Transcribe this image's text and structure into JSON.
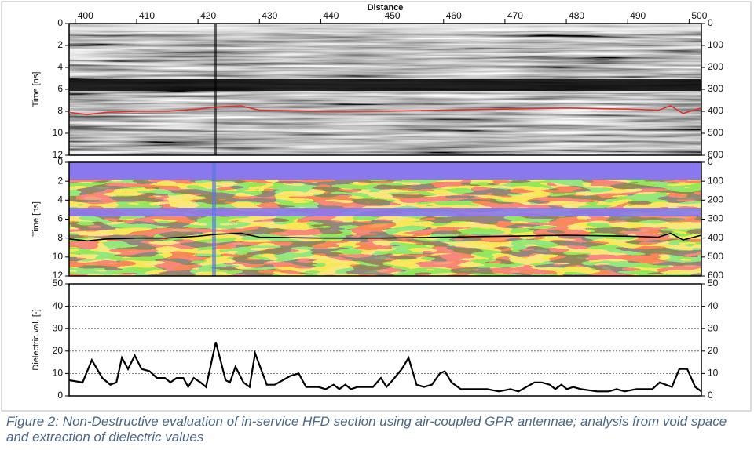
{
  "chart_data": [
    {
      "type": "radargram",
      "xlabel": "Distance",
      "ylabel": "Time [ns]",
      "xlim": [
        399,
        502
      ],
      "xticks": [
        400,
        410,
        420,
        430,
        440,
        450,
        460,
        470,
        480,
        490,
        500
      ],
      "ylim": [
        0,
        12
      ],
      "y_inverted": true,
      "yticks": [
        0,
        2,
        4,
        6,
        8,
        10,
        12
      ],
      "y2lim": [
        0,
        600
      ],
      "y2ticks": [
        0,
        100,
        200,
        300,
        400,
        500,
        600
      ],
      "color": "#e0302a",
      "x": [
        399,
        402,
        405,
        410,
        415,
        420,
        423,
        427,
        430,
        440,
        450,
        460,
        470,
        480,
        490,
        495,
        497,
        499,
        502
      ],
      "values": [
        8.1,
        8.3,
        8.1,
        8.0,
        8.0,
        7.8,
        7.6,
        7.5,
        7.9,
        8.0,
        8.0,
        7.9,
        7.8,
        7.7,
        7.8,
        7.9,
        7.5,
        8.2,
        7.7
      ]
    },
    {
      "type": "colormap",
      "ylabel": "Time [ns]",
      "xlim": [
        399,
        502
      ],
      "ylim": [
        0,
        12
      ],
      "y_inverted": true,
      "yticks": [
        0,
        2,
        4,
        6,
        8,
        10,
        12
      ],
      "y2lim": [
        0,
        600
      ],
      "y2ticks": [
        0,
        100,
        200,
        300,
        400,
        500,
        600
      ],
      "color": "#000000",
      "x": [
        399,
        402,
        405,
        410,
        415,
        420,
        423,
        427,
        430,
        440,
        450,
        460,
        470,
        480,
        490,
        495,
        497,
        499,
        502
      ],
      "values": [
        8.1,
        8.3,
        8.1,
        8.0,
        8.0,
        7.8,
        7.6,
        7.5,
        7.9,
        8.0,
        8.0,
        7.9,
        7.8,
        7.7,
        7.8,
        7.9,
        7.5,
        8.2,
        7.7
      ]
    },
    {
      "type": "line",
      "ylabel": "Dielectric val. [-]",
      "xlim": [
        399,
        502
      ],
      "ylim": [
        0,
        50
      ],
      "yticks": [
        0,
        10,
        20,
        30,
        40,
        50
      ],
      "y2lim": [
        0,
        50
      ],
      "y2ticks": [
        0,
        10,
        20,
        30,
        40,
        50
      ],
      "grid": true,
      "color": "#000000",
      "x": [
        399,
        401.2,
        402.7,
        404.4,
        405.7,
        406.7,
        407.6,
        408.6,
        409.7,
        410.8,
        412.1,
        413.3,
        414.6,
        415.5,
        416.5,
        417.6,
        418.4,
        419.3,
        420.4,
        421.3,
        422.9,
        424.5,
        425.2,
        426.1,
        427.4,
        428.4,
        429.3,
        431.2,
        432.5,
        433.8,
        435.1,
        436.4,
        437.6,
        439.6,
        440.8,
        442.1,
        443.0,
        444.0,
        444.9,
        446.0,
        447.2,
        448.5,
        449.8,
        450.7,
        451.7,
        453.2,
        454.3,
        455.6,
        456.8,
        458.1,
        459.4,
        460.2,
        461.3,
        462.8,
        464.5,
        467.1,
        469.0,
        470.9,
        472.2,
        473.5,
        474.8,
        476.0,
        477.3,
        478.2,
        479.2,
        480.1,
        481.1,
        482.4,
        485.0,
        486.9,
        488.2,
        489.5,
        491.4,
        492.7,
        494.0,
        495.2,
        497.2,
        498.4,
        499.7,
        501.0,
        502.0
      ],
      "values": [
        7,
        6,
        16,
        8,
        5,
        6,
        17,
        12,
        18,
        12,
        11,
        8,
        8,
        6,
        8,
        8,
        4,
        8,
        6,
        4,
        24,
        7,
        6,
        13,
        6,
        4,
        19,
        5,
        5,
        7,
        9,
        10,
        4,
        4,
        3,
        5,
        3,
        5,
        3,
        4,
        4,
        4,
        8,
        4,
        7,
        12,
        17,
        5,
        4,
        5,
        10,
        11,
        6,
        3,
        3,
        3,
        2,
        3,
        2,
        4,
        6,
        6,
        5,
        3,
        5,
        3,
        4,
        3,
        2,
        2,
        3,
        2,
        3,
        3,
        3,
        6,
        4,
        12,
        12,
        4,
        2
      ]
    }
  ],
  "caption": "Figure 2: Non-Destructive evaluation of in-service HFD section using air-coupled GPR antennae; analysis from void space and extraction of dielectric values"
}
